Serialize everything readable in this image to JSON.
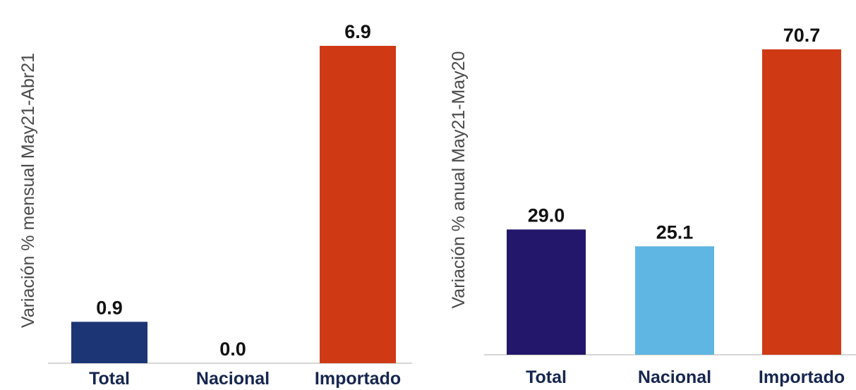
{
  "chart_data": [
    {
      "type": "bar",
      "categories": [
        "Total",
        "Nacional",
        "Importado"
      ],
      "values": [
        0.9,
        0.0,
        6.9
      ],
      "value_labels": [
        "0.9",
        "0.0",
        "6.9"
      ],
      "ylabel": "Variación % mensual May21-Abr21",
      "xlabel": "",
      "ylim": [
        0,
        6.9
      ],
      "grid": false,
      "colors": [
        "#1c3575",
        "#1c3575",
        "#cf3a14"
      ]
    },
    {
      "type": "bar",
      "categories": [
        "Total",
        "Nacional",
        "Importado"
      ],
      "values": [
        29.0,
        25.1,
        70.7
      ],
      "value_labels": [
        "29.0",
        "25.1",
        "70.7"
      ],
      "ylabel": "Variación % anual May21-May20",
      "xlabel": "",
      "ylim": [
        0,
        70.7
      ],
      "grid": false,
      "colors": [
        "#22176a",
        "#5fb6e3",
        "#cf3a14"
      ]
    }
  ]
}
